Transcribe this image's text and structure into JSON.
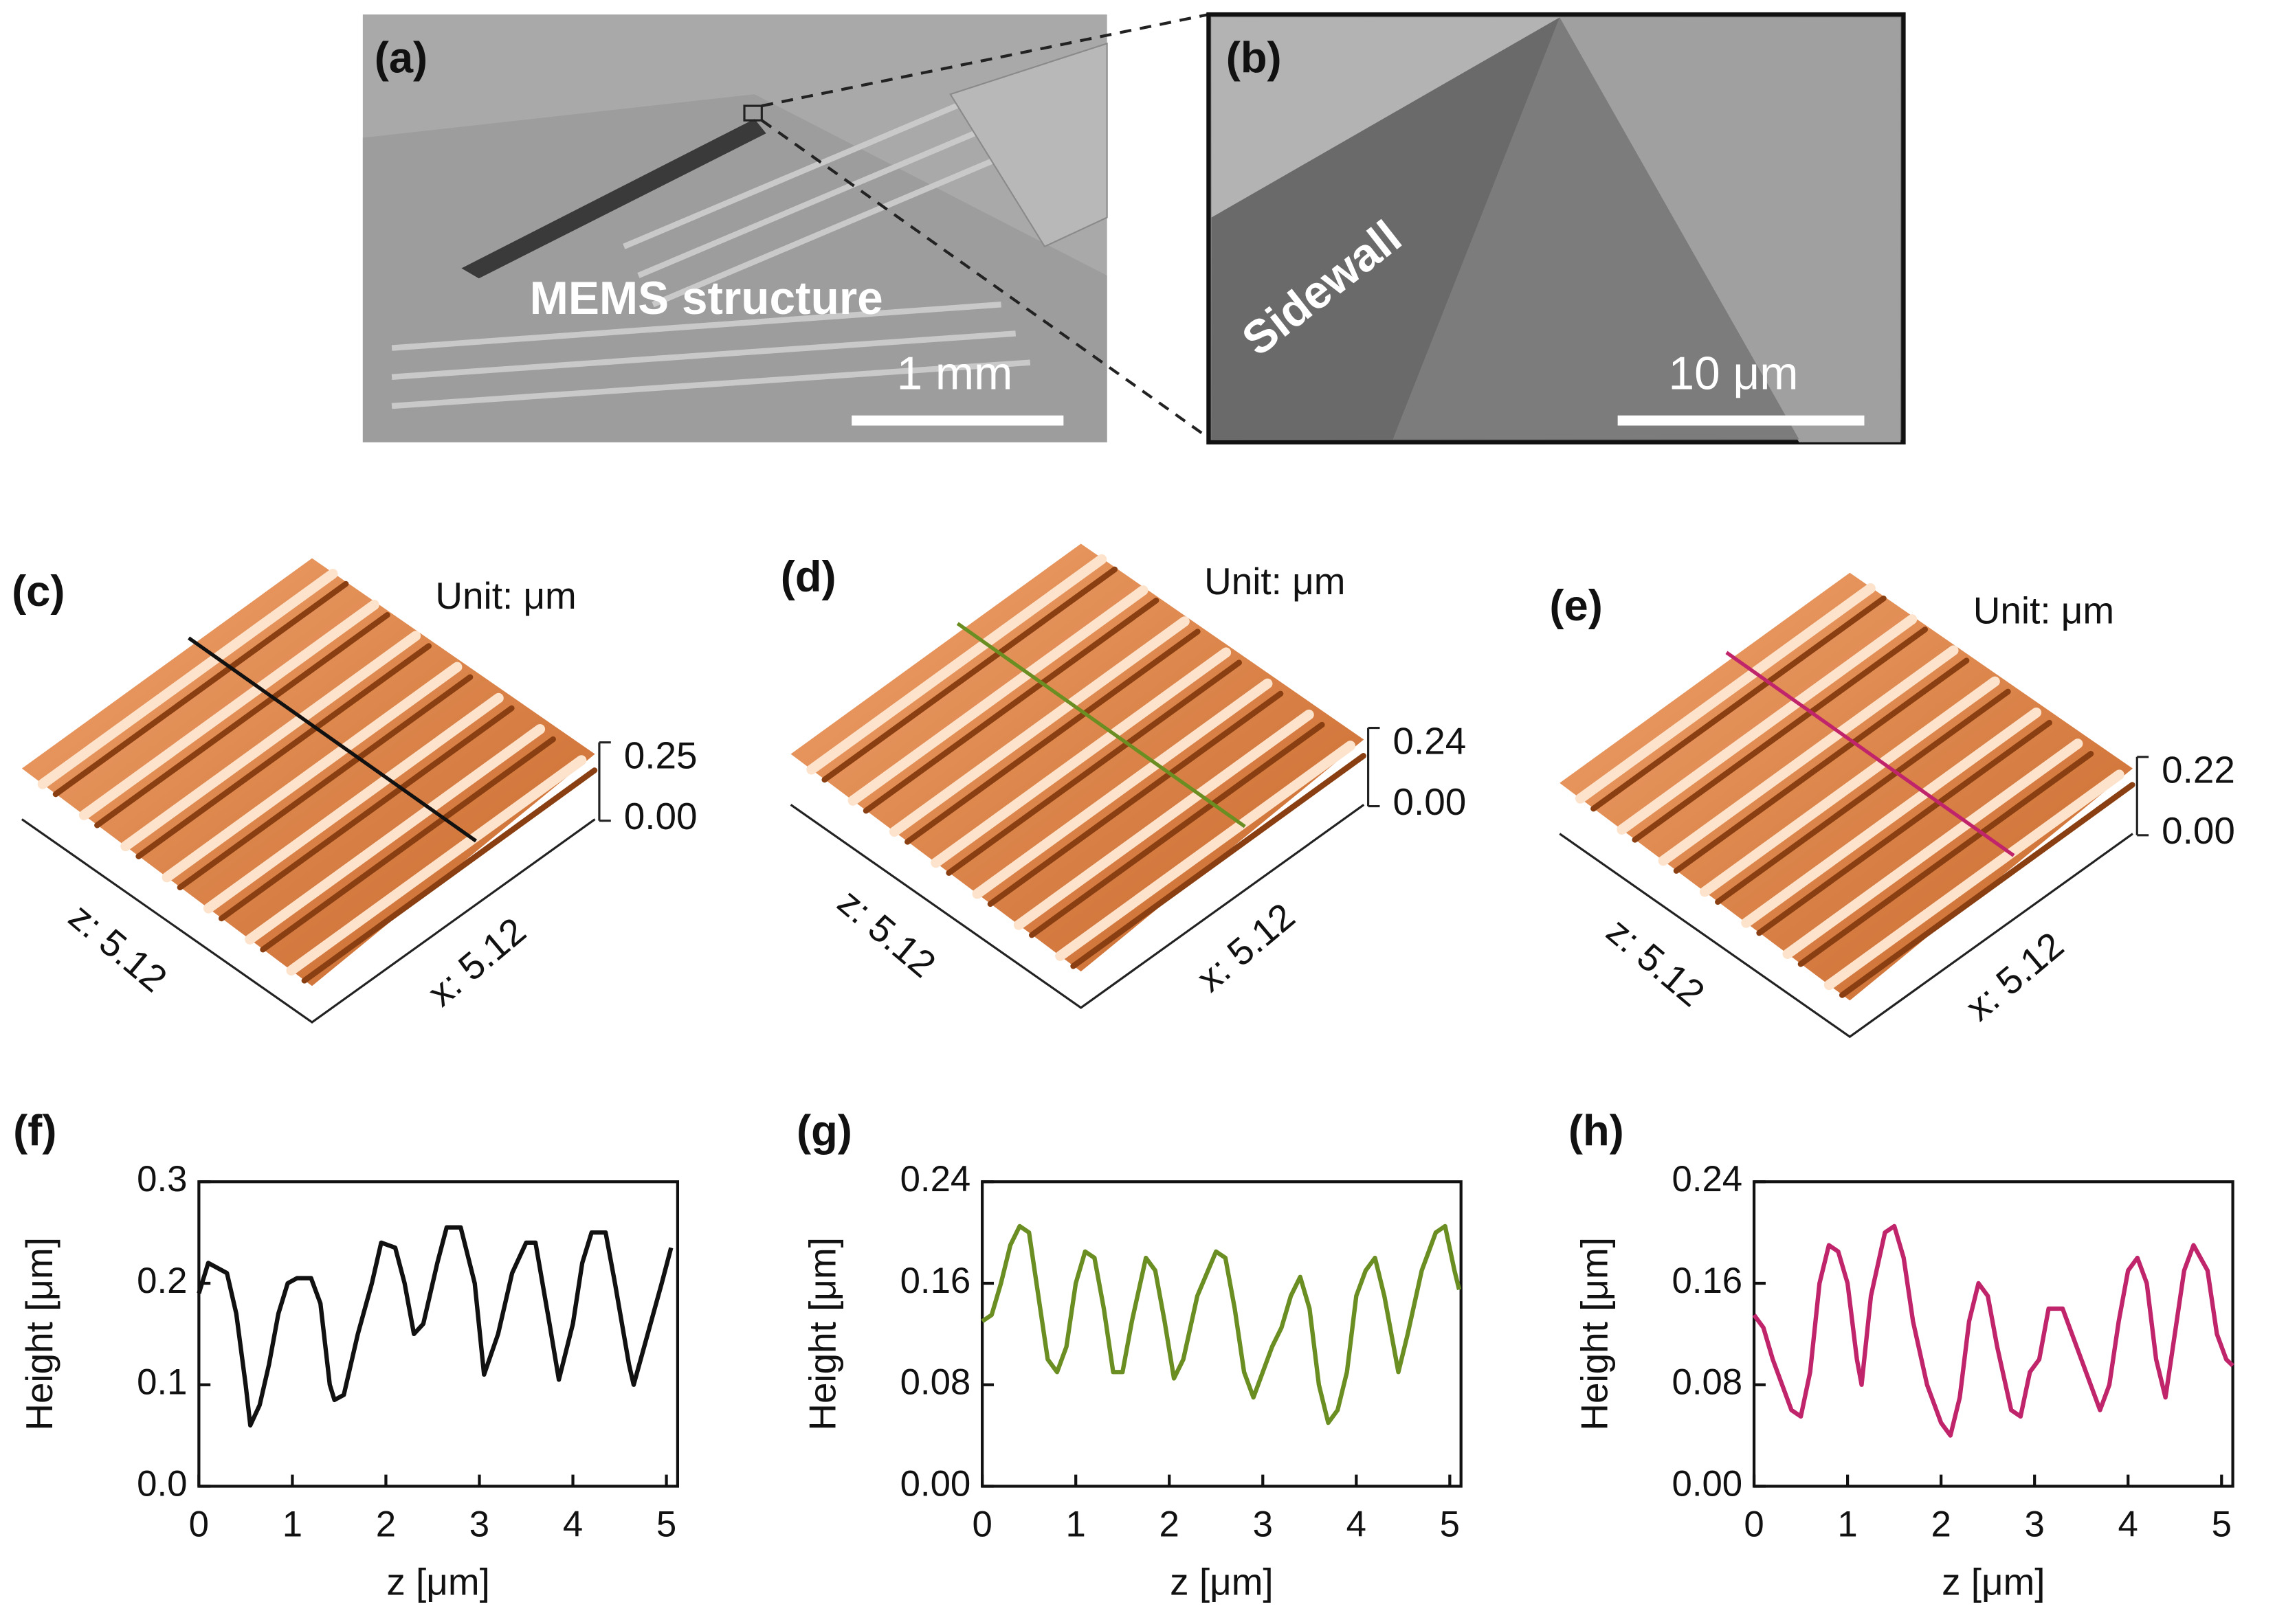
{
  "panels": {
    "a": {
      "label": "(a)",
      "caption": "MEMS structure",
      "scale": "1 mm"
    },
    "b": {
      "label": "(b)",
      "caption": "Sidewall",
      "scale": "10 μm"
    },
    "c": {
      "label": "(c)",
      "unit": "Unit: μm",
      "z_top": "0.25",
      "z_bottom": "0.00",
      "z_axis": "z: 5.12",
      "x_axis": "x: 5.12"
    },
    "d": {
      "label": "(d)",
      "unit": "Unit: μm",
      "z_top": "0.24",
      "z_bottom": "0.00",
      "z_axis": "z: 5.12",
      "x_axis": "x: 5.12"
    },
    "e": {
      "label": "(e)",
      "unit": "Unit: μm",
      "z_top": "0.22",
      "z_bottom": "0.00",
      "z_axis": "z: 5.12",
      "x_axis": "x: 5.12"
    }
  },
  "chart_data": [
    {
      "type": "line",
      "label": "(f)",
      "x_label": "z [μm]",
      "y_label": "Height [μm]",
      "xlim": [
        0,
        5.12
      ],
      "ylim": [
        0,
        0.3
      ],
      "xticks": [
        0,
        1,
        2,
        3,
        4,
        5
      ],
      "yticks": [
        {
          "value": 0,
          "label": "0.0"
        },
        {
          "value": 0.1,
          "label": "0.1"
        },
        {
          "value": 0.2,
          "label": "0.2"
        },
        {
          "value": 0.3,
          "label": "0.3"
        }
      ],
      "x": [
        0,
        0.1,
        0.2,
        0.3,
        0.4,
        0.5,
        0.55,
        0.65,
        0.75,
        0.85,
        0.95,
        1.05,
        1.2,
        1.3,
        1.4,
        1.45,
        1.55,
        1.7,
        1.85,
        1.95,
        2.1,
        2.2,
        2.3,
        2.4,
        2.55,
        2.65,
        2.8,
        2.95,
        3.05,
        3.2,
        3.35,
        3.5,
        3.6,
        3.75,
        3.85,
        4.0,
        4.1,
        4.2,
        4.35,
        4.45,
        4.6,
        4.65,
        4.8,
        4.95,
        5.05
      ],
      "series": [
        {
          "color": "#111111",
          "values": [
            0.19,
            0.22,
            0.215,
            0.21,
            0.17,
            0.1,
            0.06,
            0.08,
            0.12,
            0.17,
            0.2,
            0.205,
            0.205,
            0.18,
            0.1,
            0.085,
            0.09,
            0.15,
            0.2,
            0.24,
            0.235,
            0.2,
            0.15,
            0.16,
            0.22,
            0.255,
            0.255,
            0.2,
            0.11,
            0.15,
            0.21,
            0.24,
            0.24,
            0.16,
            0.105,
            0.16,
            0.22,
            0.25,
            0.25,
            0.2,
            0.12,
            0.1,
            0.15,
            0.2,
            0.235
          ]
        }
      ]
    },
    {
      "type": "line",
      "label": "(g)",
      "x_label": "z [μm]",
      "y_label": "Height [μm]",
      "xlim": [
        0,
        5.12
      ],
      "ylim": [
        0,
        0.24
      ],
      "xticks": [
        0,
        1,
        2,
        3,
        4,
        5
      ],
      "yticks": [
        {
          "value": 0,
          "label": "0.00"
        },
        {
          "value": 0.08,
          "label": "0.08"
        },
        {
          "value": 0.16,
          "label": "0.16"
        },
        {
          "value": 0.24,
          "label": "0.24"
        }
      ],
      "x": [
        0,
        0.1,
        0.2,
        0.3,
        0.4,
        0.5,
        0.6,
        0.7,
        0.8,
        0.9,
        1.0,
        1.1,
        1.2,
        1.3,
        1.4,
        1.5,
        1.6,
        1.75,
        1.85,
        1.95,
        2.05,
        2.15,
        2.3,
        2.5,
        2.6,
        2.7,
        2.8,
        2.9,
        3.0,
        3.1,
        3.2,
        3.3,
        3.4,
        3.5,
        3.6,
        3.7,
        3.8,
        3.9,
        4.0,
        4.1,
        4.2,
        4.3,
        4.45,
        4.55,
        4.7,
        4.85,
        4.95,
        5.05,
        5.1
      ],
      "series": [
        {
          "color": "#6b8e23",
          "values": [
            0.13,
            0.135,
            0.16,
            0.19,
            0.205,
            0.2,
            0.15,
            0.1,
            0.09,
            0.11,
            0.16,
            0.185,
            0.18,
            0.14,
            0.09,
            0.09,
            0.13,
            0.18,
            0.17,
            0.13,
            0.085,
            0.1,
            0.15,
            0.185,
            0.18,
            0.14,
            0.09,
            0.07,
            0.09,
            0.11,
            0.125,
            0.15,
            0.165,
            0.14,
            0.08,
            0.05,
            0.06,
            0.09,
            0.15,
            0.17,
            0.18,
            0.15,
            0.09,
            0.12,
            0.17,
            0.2,
            0.205,
            0.17,
            0.155
          ]
        }
      ]
    },
    {
      "type": "line",
      "label": "(h)",
      "x_label": "z [μm]",
      "y_label": "Height [μm]",
      "xlim": [
        0,
        5.12
      ],
      "ylim": [
        0,
        0.24
      ],
      "xticks": [
        0,
        1,
        2,
        3,
        4,
        5
      ],
      "yticks": [
        {
          "value": 0,
          "label": "0.00"
        },
        {
          "value": 0.08,
          "label": "0.08"
        },
        {
          "value": 0.16,
          "label": "0.16"
        },
        {
          "value": 0.24,
          "label": "0.24"
        }
      ],
      "x": [
        0,
        0.1,
        0.2,
        0.3,
        0.4,
        0.5,
        0.6,
        0.7,
        0.8,
        0.9,
        1.0,
        1.1,
        1.15,
        1.25,
        1.4,
        1.5,
        1.6,
        1.7,
        1.85,
        2.0,
        2.1,
        2.2,
        2.3,
        2.4,
        2.5,
        2.6,
        2.75,
        2.85,
        2.95,
        3.05,
        3.15,
        3.3,
        3.4,
        3.5,
        3.6,
        3.7,
        3.8,
        3.9,
        4.0,
        4.1,
        4.2,
        4.3,
        4.4,
        4.5,
        4.6,
        4.7,
        4.85,
        4.95,
        5.05,
        5.12
      ],
      "series": [
        {
          "color": "#c0246a",
          "values": [
            0.135,
            0.125,
            0.1,
            0.08,
            0.06,
            0.055,
            0.09,
            0.16,
            0.19,
            0.185,
            0.16,
            0.1,
            0.08,
            0.15,
            0.2,
            0.205,
            0.18,
            0.13,
            0.08,
            0.05,
            0.04,
            0.07,
            0.13,
            0.16,
            0.15,
            0.11,
            0.06,
            0.055,
            0.09,
            0.1,
            0.14,
            0.14,
            0.12,
            0.1,
            0.08,
            0.06,
            0.08,
            0.13,
            0.17,
            0.18,
            0.16,
            0.1,
            0.07,
            0.12,
            0.17,
            0.19,
            0.17,
            0.12,
            0.1,
            0.095
          ]
        }
      ]
    }
  ]
}
